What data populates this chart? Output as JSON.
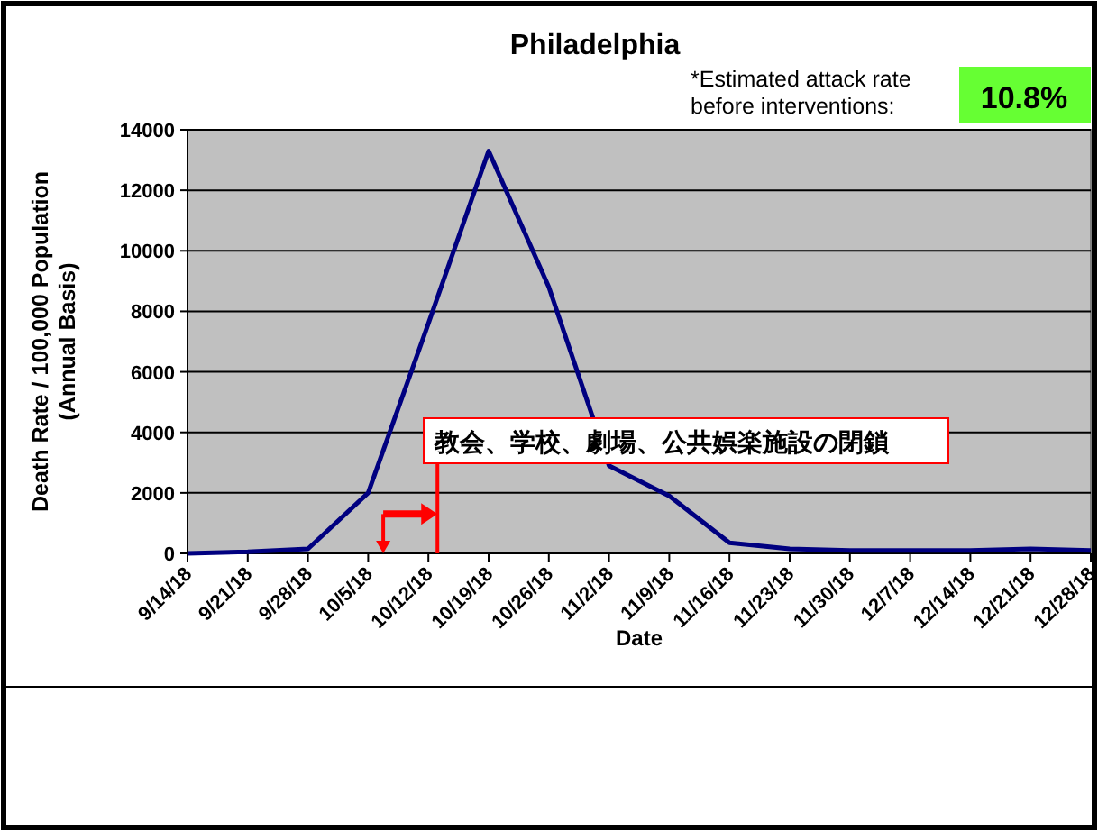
{
  "chart_data": {
    "type": "line",
    "title": "Philadelphia",
    "xlabel": "Date",
    "ylabel": "Death Rate / 100,000 Population (Annual Basis)",
    "categories": [
      "9/14/18",
      "9/21/18",
      "9/28/18",
      "10/5/18",
      "10/12/18",
      "10/19/18",
      "10/26/18",
      "11/2/18",
      "11/9/18",
      "11/16/18",
      "11/23/18",
      "11/30/18",
      "12/7/18",
      "12/14/18",
      "12/21/18",
      "12/28/18"
    ],
    "series": [
      {
        "color": "#000080",
        "values": [
          0,
          50,
          150,
          2000,
          7600,
          13300,
          8800,
          2900,
          1900,
          350,
          150,
          100,
          100,
          100,
          150,
          100
        ]
      }
    ],
    "ylim": [
      0,
      14000
    ],
    "yticks": [
      0,
      2000,
      4000,
      6000,
      8000,
      10000,
      12000,
      14000
    ],
    "grid": "y",
    "marker": "none",
    "line_style": "solid",
    "annotations": [
      "*Estimated attack rate before interventions:",
      "10.8%",
      "教会、学校、劇場、公共娯楽施設の閉鎖"
    ]
  }
}
